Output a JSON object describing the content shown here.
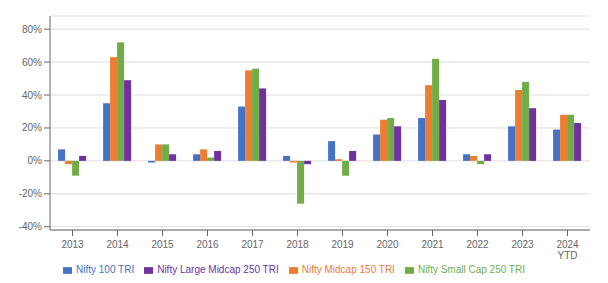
{
  "chart_data": {
    "type": "bar",
    "categories": [
      "2013",
      "2014",
      "2015",
      "2016",
      "2017",
      "2018",
      "2019",
      "2020",
      "2021",
      "2022",
      "2023",
      "2024\nYTD"
    ],
    "series": [
      {
        "name": "Nifty 100 TRI",
        "color": "#4472C4",
        "values": [
          7,
          35,
          -1,
          4,
          33,
          3,
          12,
          16,
          26,
          4,
          21,
          19
        ]
      },
      {
        "name": "Nifty Midcap 150 TRI",
        "color": "#ED7D31",
        "values": [
          -2,
          63,
          10,
          7,
          55,
          -1,
          1,
          25,
          46,
          3,
          43,
          28
        ]
      },
      {
        "name": "Nifty Small Cap 250 TRI",
        "color": "#70AD47",
        "values": [
          -9,
          72,
          10,
          2,
          56,
          -26,
          -9,
          26,
          62,
          -2,
          48,
          28
        ]
      },
      {
        "name": "Nifty Large Midcap 250 TRI",
        "color": "#7030A0",
        "values": [
          3,
          49,
          4,
          6,
          44,
          -2,
          6,
          21,
          37,
          4,
          32,
          23
        ]
      }
    ],
    "ylim": [
      -42,
      88
    ],
    "yticks": [
      {
        "value": -40,
        "label": "-40%"
      },
      {
        "value": -20,
        "label": "-20%"
      },
      {
        "value": 0,
        "label": "0%"
      },
      {
        "value": 20,
        "label": "20%"
      },
      {
        "value": 40,
        "label": "40%"
      },
      {
        "value": 60,
        "label": "60%"
      },
      {
        "value": 80,
        "label": "80%"
      }
    ],
    "grid": true,
    "legend": "bottom"
  }
}
